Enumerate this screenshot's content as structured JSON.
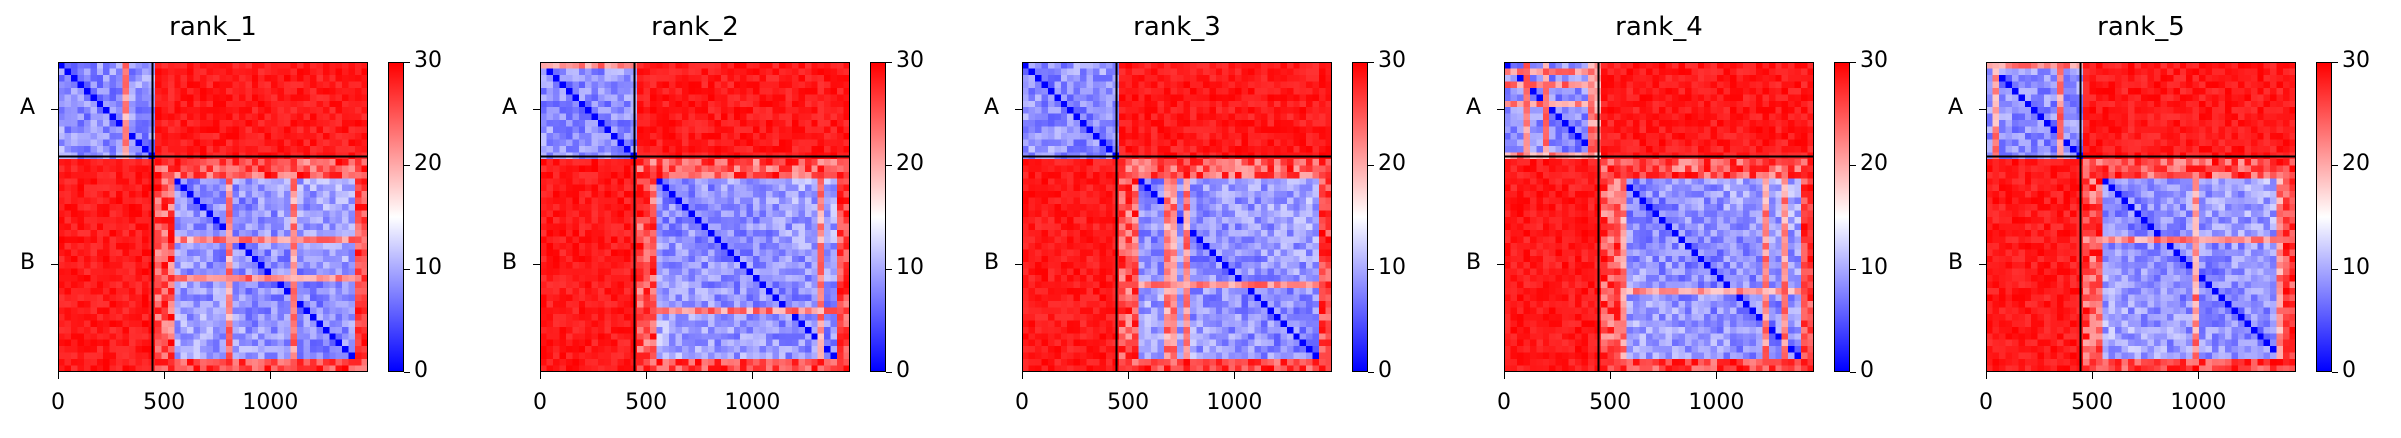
{
  "chart_data": [
    {
      "type": "heatmap",
      "title": "rank_1",
      "xticks": [
        "0",
        "500",
        "1000"
      ],
      "xtick_values": [
        0,
        500,
        1000
      ],
      "xlim": [
        0,
        1460
      ],
      "yticks": [
        "A",
        "B"
      ],
      "ytick_values": [
        222,
        950
      ],
      "chain_boundary": 445,
      "colorbar": {
        "ticks": [
          "0",
          "10",
          "20",
          "30"
        ],
        "min": 0,
        "max": 30,
        "colors": [
          "#0000ff",
          "#ffffff",
          "#ff0000"
        ]
      },
      "inter_chain_value": 30,
      "intra_chain_mean": 8
    },
    {
      "type": "heatmap",
      "title": "rank_2",
      "xticks": [
        "0",
        "500",
        "1000"
      ],
      "xtick_values": [
        0,
        500,
        1000
      ],
      "xlim": [
        0,
        1460
      ],
      "yticks": [
        "A",
        "B"
      ],
      "ytick_values": [
        222,
        950
      ],
      "chain_boundary": 445,
      "colorbar": {
        "ticks": [
          "0",
          "10",
          "20",
          "30"
        ],
        "min": 0,
        "max": 30,
        "colors": [
          "#0000ff",
          "#ffffff",
          "#ff0000"
        ]
      },
      "inter_chain_value": 30,
      "intra_chain_mean": 8
    },
    {
      "type": "heatmap",
      "title": "rank_3",
      "xticks": [
        "0",
        "500",
        "1000"
      ],
      "xtick_values": [
        0,
        500,
        1000
      ],
      "xlim": [
        0,
        1460
      ],
      "yticks": [
        "A",
        "B"
      ],
      "ytick_values": [
        222,
        950
      ],
      "chain_boundary": 445,
      "colorbar": {
        "ticks": [
          "0",
          "10",
          "20",
          "30"
        ],
        "min": 0,
        "max": 30,
        "colors": [
          "#0000ff",
          "#ffffff",
          "#ff0000"
        ]
      },
      "inter_chain_value": 30,
      "intra_chain_mean": 8
    },
    {
      "type": "heatmap",
      "title": "rank_4",
      "xticks": [
        "0",
        "500",
        "1000"
      ],
      "xtick_values": [
        0,
        500,
        1000
      ],
      "xlim": [
        0,
        1460
      ],
      "yticks": [
        "A",
        "B"
      ],
      "ytick_values": [
        222,
        950
      ],
      "chain_boundary": 445,
      "colorbar": {
        "ticks": [
          "0",
          "10",
          "20",
          "30"
        ],
        "min": 0,
        "max": 30,
        "colors": [
          "#0000ff",
          "#ffffff",
          "#ff0000"
        ]
      },
      "inter_chain_value": 30,
      "intra_chain_mean": 8
    },
    {
      "type": "heatmap",
      "title": "rank_5",
      "xticks": [
        "0",
        "500",
        "1000"
      ],
      "xtick_values": [
        0,
        500,
        1000
      ],
      "xlim": [
        0,
        1460
      ],
      "yticks": [
        "A",
        "B"
      ],
      "ytick_values": [
        222,
        950
      ],
      "chain_boundary": 445,
      "colorbar": {
        "ticks": [
          "0",
          "10",
          "20",
          "30"
        ],
        "min": 0,
        "max": 30,
        "colors": [
          "#0000ff",
          "#ffffff",
          "#ff0000"
        ]
      },
      "inter_chain_value": 30,
      "intra_chain_mean": 8
    }
  ]
}
